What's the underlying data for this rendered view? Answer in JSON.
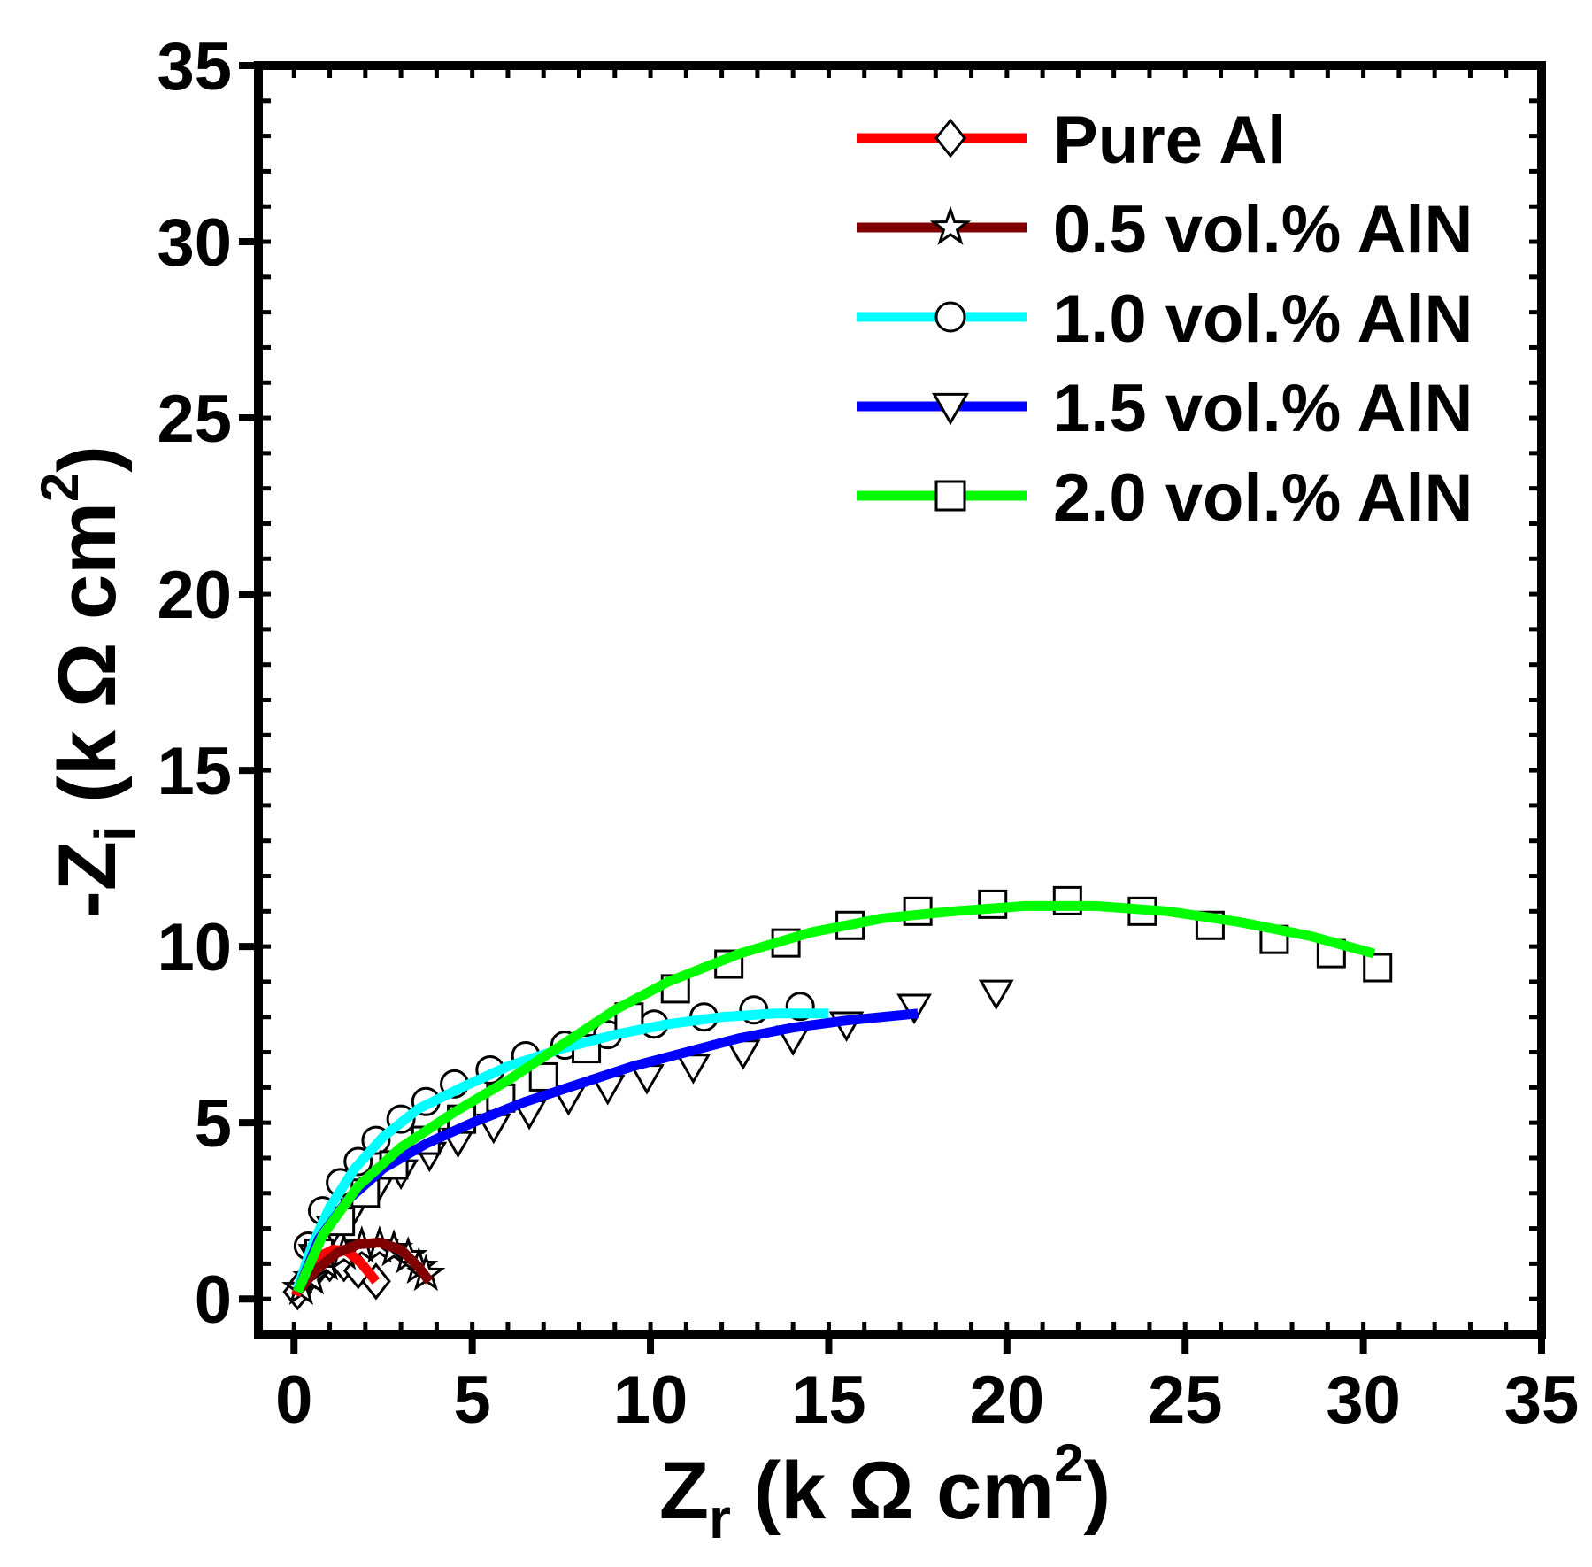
{
  "chart_data": {
    "type": "scatter",
    "title": "",
    "xlabel": {
      "main": "Z",
      "sub": "r",
      "rest": " (k Ω cm",
      "sup": "2",
      "close": ")"
    },
    "ylabel": {
      "main": "-Z",
      "sub": "i",
      "rest": " (k Ω cm",
      "sup": "2",
      "close": ")"
    },
    "xlim": [
      -1,
      35
    ],
    "ylim": [
      -1,
      35
    ],
    "xticks": [
      0,
      5,
      10,
      15,
      20,
      25,
      30,
      35
    ],
    "yticks": [
      0,
      5,
      10,
      15,
      20,
      25,
      30,
      35
    ],
    "xtick_labels": [
      "0",
      "5",
      "10",
      "15",
      "20",
      "25",
      "30",
      "35"
    ],
    "ytick_labels": [
      "0",
      "5",
      "10",
      "15",
      "20",
      "25",
      "30",
      "35"
    ],
    "grid": false,
    "legend_position": "top-right",
    "series": [
      {
        "name": "Pure Al",
        "color": "#ff0000",
        "marker": "diamond",
        "points": [
          [
            0.1,
            0.2
          ],
          [
            0.3,
            0.5
          ],
          [
            0.6,
            0.8
          ],
          [
            1.0,
            1.0
          ],
          [
            1.4,
            1.0
          ],
          [
            1.8,
            0.8
          ],
          [
            2.3,
            0.5
          ]
        ],
        "fit": [
          [
            0.05,
            0.1
          ],
          [
            0.3,
            0.8
          ],
          [
            0.7,
            1.2
          ],
          [
            1.1,
            1.4
          ],
          [
            1.5,
            1.35
          ],
          [
            1.9,
            1.0
          ],
          [
            2.3,
            0.5
          ]
        ]
      },
      {
        "name": "0.5 vol.% AlN",
        "color": "#800000",
        "marker": "star",
        "points": [
          [
            0.2,
            0.3
          ],
          [
            0.5,
            0.6
          ],
          [
            0.9,
            1.0
          ],
          [
            1.4,
            1.3
          ],
          [
            1.9,
            1.5
          ],
          [
            2.4,
            1.5
          ],
          [
            2.8,
            1.4
          ],
          [
            3.2,
            1.2
          ],
          [
            3.5,
            0.9
          ],
          [
            3.7,
            0.7
          ]
        ],
        "fit": [
          [
            0.1,
            0.2
          ],
          [
            0.6,
            0.8
          ],
          [
            1.2,
            1.3
          ],
          [
            1.8,
            1.55
          ],
          [
            2.4,
            1.6
          ],
          [
            3.0,
            1.4
          ],
          [
            3.5,
            0.9
          ],
          [
            3.8,
            0.5
          ]
        ]
      },
      {
        "name": "1.0 vol.% AlN",
        "color": "#00ffff",
        "marker": "circle",
        "points": [
          [
            0.4,
            1.5
          ],
          [
            0.8,
            2.5
          ],
          [
            1.3,
            3.3
          ],
          [
            1.8,
            3.9
          ],
          [
            2.3,
            4.5
          ],
          [
            3.0,
            5.1
          ],
          [
            3.7,
            5.6
          ],
          [
            4.5,
            6.1
          ],
          [
            5.5,
            6.5
          ],
          [
            6.5,
            6.9
          ],
          [
            7.6,
            7.2
          ],
          [
            8.8,
            7.5
          ],
          [
            10.1,
            7.8
          ],
          [
            11.5,
            8.0
          ],
          [
            12.9,
            8.2
          ],
          [
            14.2,
            8.3
          ]
        ],
        "fit": [
          [
            0.1,
            0.3
          ],
          [
            0.5,
            1.5
          ],
          [
            1.0,
            2.6
          ],
          [
            1.7,
            3.7
          ],
          [
            2.5,
            4.6
          ],
          [
            3.5,
            5.4
          ],
          [
            4.7,
            6.0
          ],
          [
            6.0,
            6.6
          ],
          [
            7.5,
            7.1
          ],
          [
            9.0,
            7.5
          ],
          [
            10.5,
            7.8
          ],
          [
            12.0,
            8.0
          ],
          [
            13.5,
            8.1
          ],
          [
            15.0,
            8.1
          ]
        ]
      },
      {
        "name": "1.5 vol.% AlN",
        "color": "#0000ff",
        "marker": "triangle-down",
        "points": [
          [
            0.6,
            1.2
          ],
          [
            1.1,
            2.0
          ],
          [
            1.7,
            2.6
          ],
          [
            2.3,
            3.1
          ],
          [
            3.0,
            3.6
          ],
          [
            3.8,
            4.1
          ],
          [
            4.6,
            4.5
          ],
          [
            5.6,
            4.9
          ],
          [
            6.6,
            5.3
          ],
          [
            7.7,
            5.7
          ],
          [
            8.8,
            6.0
          ],
          [
            9.9,
            6.3
          ],
          [
            11.2,
            6.6
          ],
          [
            12.6,
            7.0
          ],
          [
            14.0,
            7.4
          ],
          [
            15.5,
            7.8
          ],
          [
            17.4,
            8.3
          ],
          [
            19.7,
            8.7
          ]
        ],
        "fit": [
          [
            0.1,
            0.2
          ],
          [
            0.7,
            1.7
          ],
          [
            1.5,
            2.8
          ],
          [
            2.5,
            3.7
          ],
          [
            3.7,
            4.4
          ],
          [
            5.0,
            5.0
          ],
          [
            6.5,
            5.6
          ],
          [
            8.0,
            6.1
          ],
          [
            9.5,
            6.6
          ],
          [
            11.0,
            7.0
          ],
          [
            12.5,
            7.4
          ],
          [
            14.0,
            7.7
          ],
          [
            15.5,
            7.9
          ],
          [
            17.5,
            8.1
          ]
        ]
      },
      {
        "name": "2.0 vol.% AlN",
        "color": "#00ff00",
        "marker": "square",
        "points": [
          [
            0.7,
            1.3
          ],
          [
            1.3,
            2.2
          ],
          [
            2.0,
            3.0
          ],
          [
            2.8,
            3.8
          ],
          [
            3.7,
            4.5
          ],
          [
            4.7,
            5.1
          ],
          [
            5.8,
            5.7
          ],
          [
            7.0,
            6.3
          ],
          [
            8.2,
            7.1
          ],
          [
            9.4,
            8.0
          ],
          [
            10.7,
            8.8
          ],
          [
            12.2,
            9.5
          ],
          [
            13.8,
            10.1
          ],
          [
            15.6,
            10.6
          ],
          [
            17.5,
            11.0
          ],
          [
            19.6,
            11.2
          ],
          [
            21.7,
            11.3
          ],
          [
            23.8,
            11.0
          ],
          [
            25.7,
            10.6
          ],
          [
            27.5,
            10.2
          ],
          [
            29.1,
            9.8
          ],
          [
            30.4,
            9.4
          ]
        ],
        "fit": [
          [
            0.1,
            0.2
          ],
          [
            0.8,
            1.8
          ],
          [
            1.8,
            3.2
          ],
          [
            3.0,
            4.3
          ],
          [
            4.5,
            5.3
          ],
          [
            6.0,
            6.2
          ],
          [
            7.5,
            7.2
          ],
          [
            9.0,
            8.2
          ],
          [
            10.5,
            9.0
          ],
          [
            12.5,
            9.8
          ],
          [
            14.5,
            10.4
          ],
          [
            16.5,
            10.8
          ],
          [
            18.5,
            11.0
          ],
          [
            20.5,
            11.15
          ],
          [
            22.5,
            11.15
          ],
          [
            24.5,
            11.0
          ],
          [
            26.5,
            10.7
          ],
          [
            28.5,
            10.3
          ],
          [
            30.3,
            9.8
          ]
        ]
      }
    ]
  }
}
